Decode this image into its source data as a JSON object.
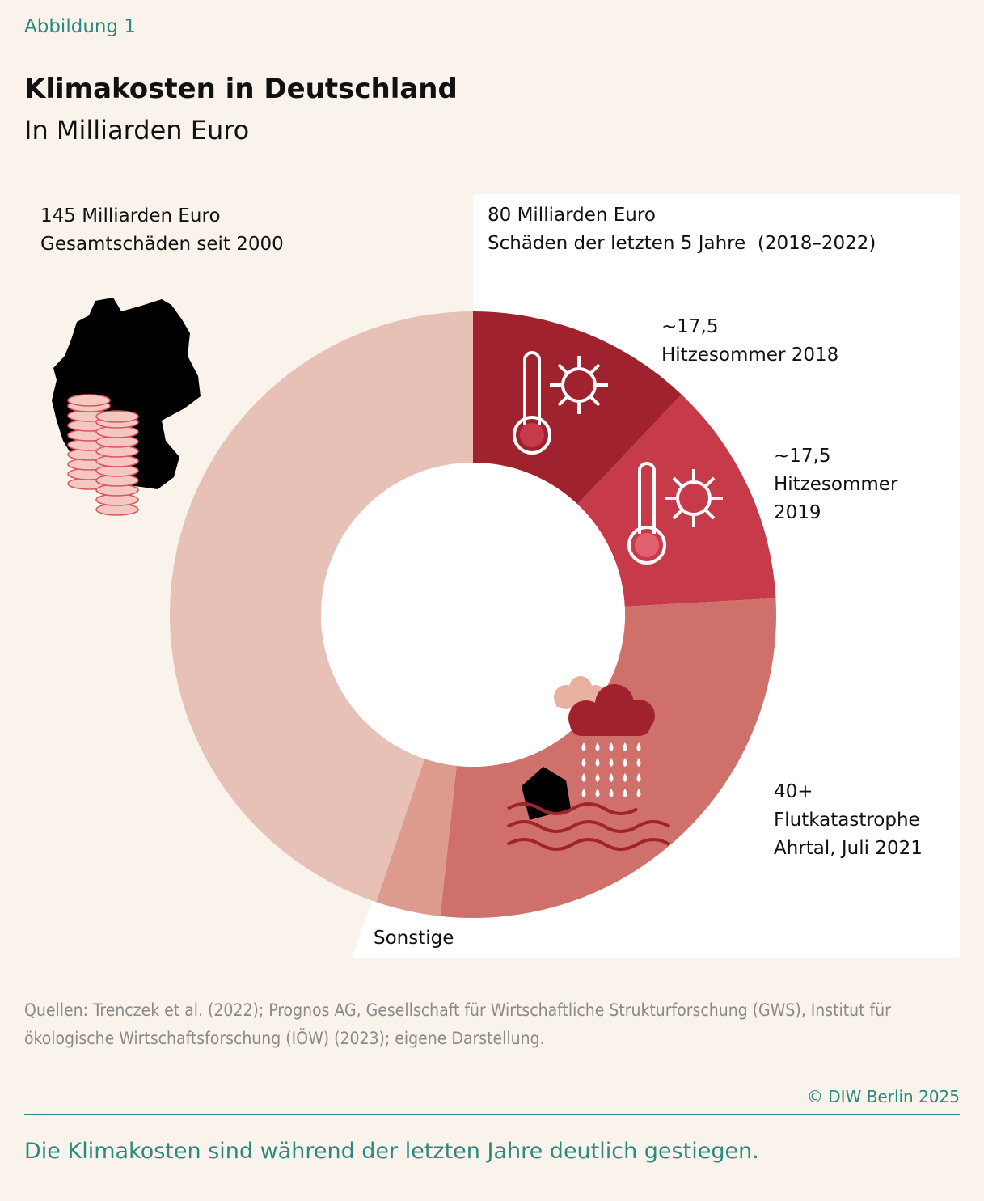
{
  "chart_data": {
    "type": "pie",
    "donut": true,
    "figure_label": "Abbildung 1",
    "title": "Klimakosten in Deutschland",
    "subtitle": "In Milliarden Euro",
    "categories": [
      "Hitzesommer 2018",
      "Hitzesommer 2019",
      "Flutkatastrophe Ahrtal, Juli 2021",
      "Sonstige",
      null
    ],
    "values": [
      17.5,
      17.5,
      40,
      5,
      65
    ],
    "value_labels": [
      "~17,5",
      "~17,5",
      "40+",
      null,
      null
    ],
    "colors": [
      "#a0222f",
      "#c73a4a",
      "#d0706b",
      "#dd9b90",
      "#e7c1b6"
    ],
    "annotations": [
      {
        "title": "145 Milliarden Euro",
        "text": "Gesamtschäden seit 2000"
      },
      {
        "title": "80 Milliarden Euro",
        "text": "Schäden der letzten 5 Jahre  (2018–2022)"
      }
    ],
    "source": "Quellen: Trenczek et al. (2022); Prognos AG, Gesellschaft für Wirtschaftliche Strukturforschung (GWS), Institut für ökologische Wirtschaftsforschung (IÖW) (2023); eigene Darstellung.",
    "copyright": "© DIW Berlin 2025",
    "caption": "Die Klimakosten sind während der letzten Jahre deutlich gestiegen."
  }
}
